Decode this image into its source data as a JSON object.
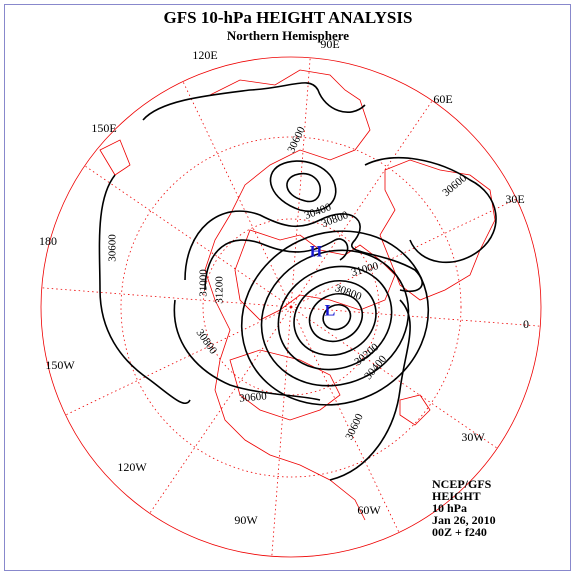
{
  "header": {
    "title": "GFS 10-hPa HEIGHT ANALYSIS",
    "subtitle": "Northern Hemisphere"
  },
  "longitude_labels": [
    "90E",
    "60E",
    "30E",
    "0",
    "30W",
    "60W",
    "90W",
    "120W",
    "150W",
    "180",
    "150E",
    "120E"
  ],
  "contour_labels": [
    30600,
    30400,
    30800,
    31000,
    30800,
    31000,
    31200,
    30800,
    30600,
    30200,
    30400,
    30600,
    30600,
    30600
  ],
  "centers": {
    "high": "H",
    "low": "L"
  },
  "info": [
    "NCEP/GFS",
    "HEIGHT",
    "10 hPa",
    "Jan 26, 2010",
    "00Z + f240"
  ]
}
